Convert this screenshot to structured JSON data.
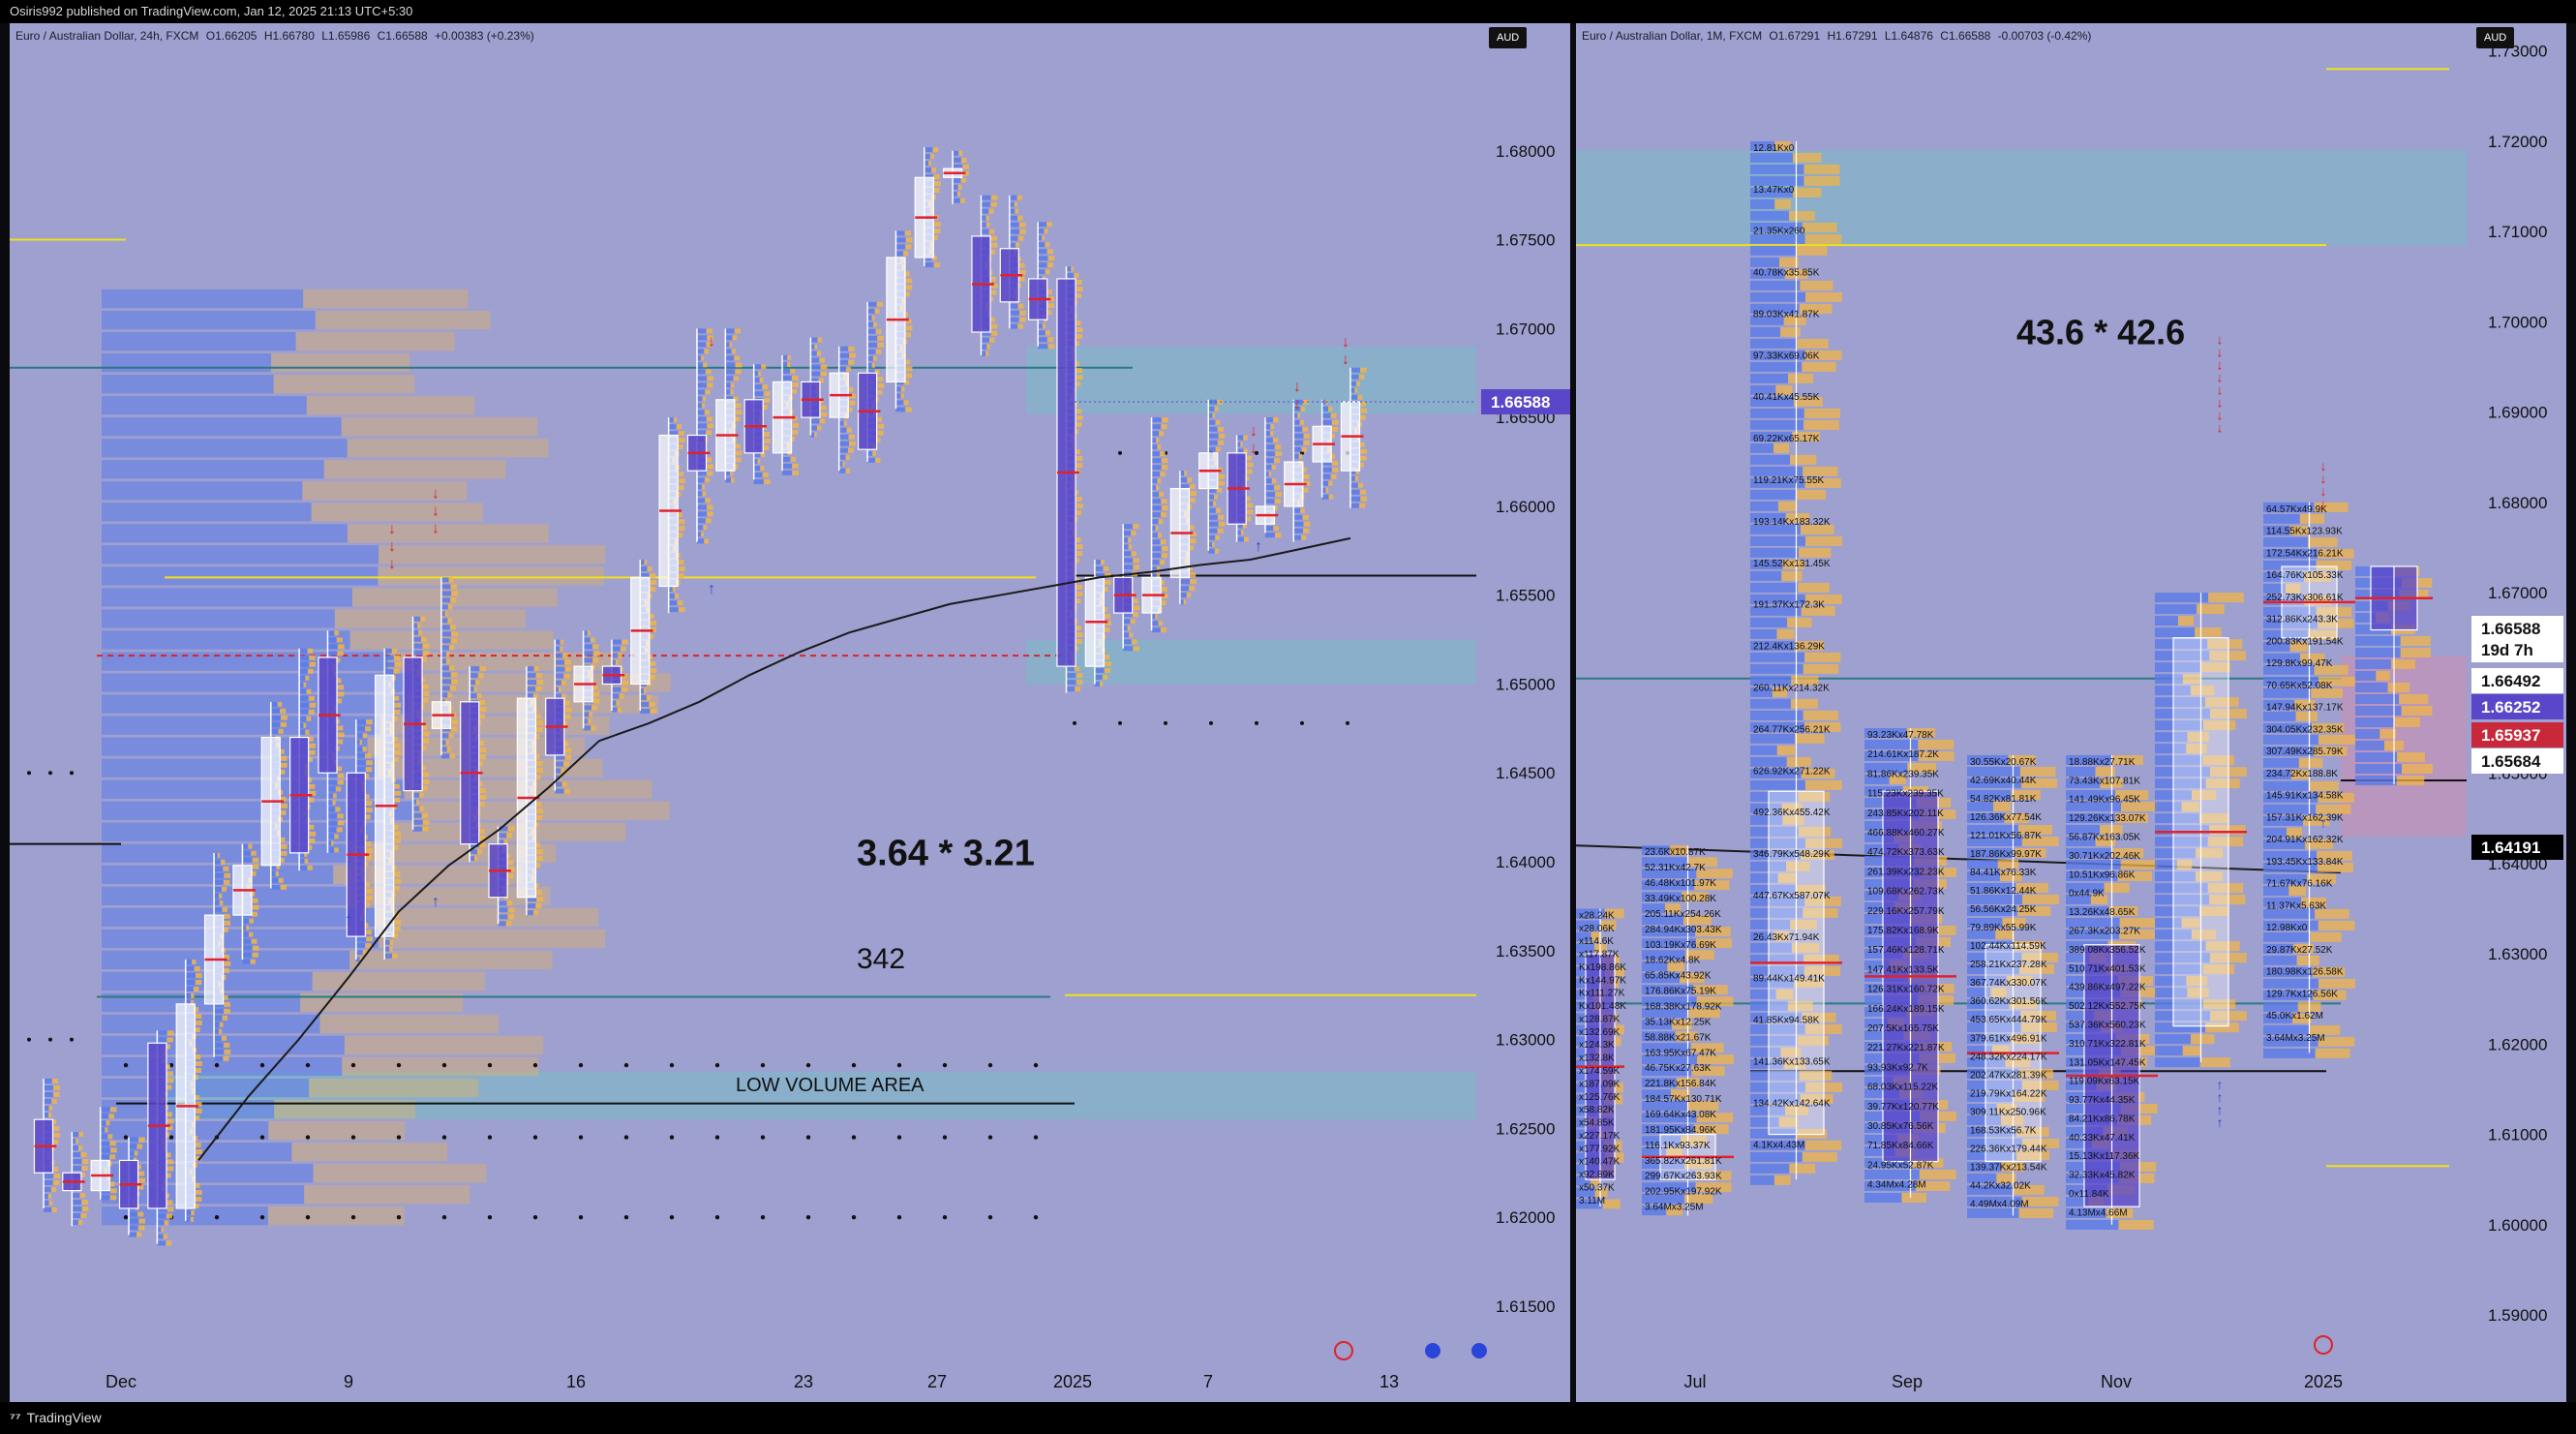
{
  "header": {
    "published_by": "Osiris992 published on TradingView.com, Jan 12, 2025 21:13 UTC+5:30"
  },
  "footer": {
    "brand": "TradingView"
  },
  "colors": {
    "panel_bg": "#9ea0cf",
    "up_candle": "#ffffff",
    "down_candle": "#6a5acd",
    "profile_blue": "#5a7ae8",
    "profile_orange": "#f0b44a",
    "poc_red": "#e0222a",
    "zone_teal": "#6fc2c6",
    "ma_line": "#1a1a1a",
    "yellow_level": "#f2e01a"
  },
  "left": {
    "title": {
      "symbol": "Euro / Australian Dollar, 24h, FXCM",
      "o": "O1.66205",
      "h": "H1.66780",
      "l": "L1.65986",
      "c": "C1.66588",
      "chg": "+0.00383 (+0.23%)"
    },
    "currency": "AUD",
    "price_label": "1.66588",
    "annotations": {
      "ratio": "3.64 * 3.21",
      "count": "342",
      "low_volume": "LOW VOLUME AREA"
    }
  },
  "right": {
    "title": {
      "symbol": "Euro / Australian Dollar, 1M, FXCM",
      "o": "O1.67291",
      "h": "H1.67291",
      "l": "L1.64876",
      "c": "C1.66588",
      "chg": "-0.00703 (-0.42%)"
    },
    "currency": "AUD",
    "annotation": "43.6 * 42.6",
    "price_labels": [
      "1.66588",
      "19d 7h",
      "1.66492",
      "1.66252",
      "1.65937",
      "1.65684",
      "1.64191"
    ],
    "profile_labels": {
      "jul": [
        "12.81Kx0",
        "13.47Kx0",
        "21.35Kx260",
        "40.78Kx35.85K",
        "89.03Kx41.87K",
        "97.33Kx69.06K",
        "40.41Kx45.55K",
        "69.22Kx65.17K",
        "119.21Kx75.55K",
        "193.14Kx183.32K",
        "145.52Kx131.45K",
        "191.37Kx172.3K",
        "212.4Kx136.29K",
        "260.11Kx214.32K",
        "264.77Kx256.21K",
        "626.92Kx271.22K",
        "492.36Kx455.42K",
        "346.79Kx548.29K",
        "447.67Kx587.07K",
        "26.43Kx71.94K",
        "89.44Kx149.41K",
        "41.85Kx94.58K",
        "141.36Kx133.65K",
        "134.42Kx142.64K",
        "4.1Kx4.43M"
      ],
      "jun": [
        "23.6Kx10.87K",
        "52.31Kx42.7K",
        "46.48Kx101.97K",
        "33.49Kx100.28K",
        "205.11Kx254.26K",
        "284.94Kx303.43K",
        "103.19Kx76.69K",
        "18.62Kx4.8K",
        "65.85Kx43.92K",
        "176.86Kx75.19K",
        "168.38Kx178.92K",
        "35.13Kx12.25K",
        "58.88Kx21.67K",
        "163.95Kx67.47K",
        "46.75Kx27.63K",
        "221.8Kx156.84K",
        "184.57Kx130.71K",
        "169.64Kx43.08K",
        "181.95Kx84.96K",
        "116.1Kx93.37K",
        "365.82Kx261.81K",
        "299.67Kx263.93K",
        "202.95Kx197.92K",
        "3.64Mx3.25M"
      ],
      "aug": [
        "93.23Kx47.78K",
        "214.61Kx187.2K",
        "81.86Kx239.35K",
        "115.23Kx239.35K",
        "243.85Kx202.11K",
        "466.88Kx460.27K",
        "474.72Kx373.63K",
        "261.39Kx232.23K",
        "109.68Kx262.73K",
        "229.16Kx257.79K",
        "175.82Kx168.9K",
        "157.46Kx128.71K",
        "147.41Kx133.5K",
        "126.31Kx160.72K",
        "166.24Kx189.15K",
        "207.5Kx165.75K",
        "221.27Kx221.87K",
        "93.93Kx92.7K",
        "68.03Kx115.22K",
        "39.77Kx120.77K",
        "30.85Kx76.56K",
        "71.85Kx84.66K",
        "24.95Kx52.87K",
        "4.34Mx4.28M"
      ],
      "sep": [
        "30.55Kx20.67K",
        "42.69Kx40.44K",
        "54.82Kx81.81K",
        "126.36Kx77.54K",
        "121.01Kx56.87K",
        "187.86Kx99.97K",
        "84.41Kx76.33K",
        "51.86Kx12.44K",
        "56.56Kx24.25K",
        "79.89Kx55.99K",
        "102.44Kx114.59K",
        "258.21Kx237.28K",
        "367.74Kx330.07K",
        "360.62Kx301.56K",
        "453.65Kx444.79K",
        "379.61Kx496.91K",
        "248.32Kx224.17K",
        "202.47Kx281.39K",
        "219.79Kx164.22K",
        "309.11Kx250.96K",
        "168.53Kx56.7K",
        "226.36Kx179.44K",
        "139.37Kx213.54K",
        "44.2Kx32.02K",
        "4.49Mx4.09M"
      ],
      "oct": [
        "18.88Kx27.71K",
        "73.43Kx107.81K",
        "141.49Kx96.45K",
        "129.26Kx133.07K",
        "56.87Kx163.05K",
        "30.71Kx202.46K",
        "10.51Kx96.86K",
        "0x44.9K",
        "13.26Kx48.65K",
        "267.3Kx203.27K",
        "389.08Kx356.52K",
        "510.71Kx401.53K",
        "439.86Kx497.22K",
        "502.12Kx552.75K",
        "537.36Kx560.23K",
        "310.71Kx322.81K",
        "131.05Kx147.45K",
        "119.09Kx63.15K",
        "93.77Kx44.35K",
        "84.21Kx86.78K",
        "40.33Kx47.41K",
        "15.13Kx117.36K",
        "32.33Kx45.82K",
        "0x11.84K",
        "4.13Mx4.66M"
      ],
      "dec": [
        "64.57Kx49.9K",
        "114.55Kx123.93K",
        "172.54Kx216.21K",
        "164.76Kx105.33K",
        "252.73Kx306.61K",
        "312.86Kx243.3K",
        "200.83Kx191.54K",
        "129.8Kx99.47K",
        "70.65Kx52.08K",
        "147.94Kx137.17K",
        "304.05Kx232.35K",
        "307.49Kx285.79K",
        "234.72Kx188.8K",
        "145.91Kx134.58K",
        "157.31Kx162.39K",
        "204.91Kx162.32K",
        "193.45Kx133.84K",
        "71.67Kx76.16K",
        "11.37Kx5.63K",
        "12.98Kx0",
        "29.87Kx27.52K",
        "180.98Kx126.58K",
        "129.7Kx126.56K",
        "45.0Kx1.62M",
        "3.64Mx3.25M"
      ],
      "may": [
        "x28.24K",
        "x28.06K",
        "x114.6K",
        "x117.87K",
        "Kx198.86K",
        "Kx144.97K",
        "Kx111.27K",
        "Kx101.48K",
        "x128.87K",
        "x132.69K",
        "x124.3K",
        "x132.8K",
        "x174.59K",
        "x187.09K",
        "x125.76K",
        "x58.82K",
        "x54.85K",
        "x227.17K",
        "x177.92K",
        "x140.47K",
        "x92.89K",
        "x50.37K",
        "3.11M"
      ]
    }
  },
  "chart_data": [
    {
      "type": "candlestick",
      "symbol": "Euro / Australian Dollar, 24h, FXCM",
      "x_tick_labels": [
        "Dec",
        "9",
        "16",
        "23",
        "27",
        "2025",
        "7",
        "13"
      ],
      "y_tick_labels": [
        "1.68000",
        "1.67500",
        "1.67000",
        "1.66500",
        "1.66000",
        "1.65500",
        "1.65000",
        "1.64500",
        "1.64000",
        "1.63500",
        "1.63000",
        "1.62500",
        "1.62000",
        "1.61500"
      ],
      "ylim": [
        1.612,
        1.685
      ],
      "last_price": 1.66588,
      "candles": [
        {
          "o": 1.6255,
          "h": 1.6278,
          "l": 1.6205,
          "c": 1.6225
        },
        {
          "o": 1.6225,
          "h": 1.6248,
          "l": 1.6195,
          "c": 1.6215
        },
        {
          "o": 1.6215,
          "h": 1.6262,
          "l": 1.621,
          "c": 1.6232
        },
        {
          "o": 1.6232,
          "h": 1.6245,
          "l": 1.619,
          "c": 1.6205
        },
        {
          "o": 1.6298,
          "h": 1.6305,
          "l": 1.6185,
          "c": 1.6205
        },
        {
          "o": 1.6205,
          "h": 1.6345,
          "l": 1.6198,
          "c": 1.632
        },
        {
          "o": 1.632,
          "h": 1.6405,
          "l": 1.629,
          "c": 1.637
        },
        {
          "o": 1.637,
          "h": 1.641,
          "l": 1.6345,
          "c": 1.6398
        },
        {
          "o": 1.6398,
          "h": 1.649,
          "l": 1.6385,
          "c": 1.647
        },
        {
          "o": 1.647,
          "h": 1.652,
          "l": 1.6395,
          "c": 1.6405
        },
        {
          "o": 1.6515,
          "h": 1.653,
          "l": 1.6405,
          "c": 1.645
        },
        {
          "o": 1.645,
          "h": 1.648,
          "l": 1.6345,
          "c": 1.6358
        },
        {
          "o": 1.6358,
          "h": 1.652,
          "l": 1.6345,
          "c": 1.6505
        },
        {
          "o": 1.6515,
          "h": 1.6538,
          "l": 1.6418,
          "c": 1.644
        },
        {
          "o": 1.6475,
          "h": 1.656,
          "l": 1.646,
          "c": 1.649
        },
        {
          "o": 1.649,
          "h": 1.651,
          "l": 1.64,
          "c": 1.641
        },
        {
          "o": 1.641,
          "h": 1.642,
          "l": 1.6365,
          "c": 1.638
        },
        {
          "o": 1.638,
          "h": 1.651,
          "l": 1.637,
          "c": 1.6492
        },
        {
          "o": 1.6492,
          "h": 1.6525,
          "l": 1.644,
          "c": 1.646
        },
        {
          "o": 1.649,
          "h": 1.653,
          "l": 1.6475,
          "c": 1.651
        },
        {
          "o": 1.651,
          "h": 1.6525,
          "l": 1.6485,
          "c": 1.65
        },
        {
          "o": 1.65,
          "h": 1.657,
          "l": 1.6485,
          "c": 1.656
        },
        {
          "o": 1.6555,
          "h": 1.665,
          "l": 1.654,
          "c": 1.664
        },
        {
          "o": 1.664,
          "h": 1.67,
          "l": 1.658,
          "c": 1.662
        },
        {
          "o": 1.662,
          "h": 1.67,
          "l": 1.6615,
          "c": 1.666
        },
        {
          "o": 1.666,
          "h": 1.668,
          "l": 1.6615,
          "c": 1.663
        },
        {
          "o": 1.663,
          "h": 1.6685,
          "l": 1.662,
          "c": 1.667
        },
        {
          "o": 1.667,
          "h": 1.6695,
          "l": 1.664,
          "c": 1.665
        },
        {
          "o": 1.665,
          "h": 1.669,
          "l": 1.662,
          "c": 1.6675
        },
        {
          "o": 1.6675,
          "h": 1.6715,
          "l": 1.6625,
          "c": 1.6632
        },
        {
          "o": 1.667,
          "h": 1.6755,
          "l": 1.6655,
          "c": 1.674
        },
        {
          "o": 1.674,
          "h": 1.6802,
          "l": 1.6735,
          "c": 1.6785
        },
        {
          "o": 1.6785,
          "h": 1.68,
          "l": 1.677,
          "c": 1.679
        },
        {
          "o": 1.6752,
          "h": 1.6775,
          "l": 1.6685,
          "c": 1.6698
        },
        {
          "o": 1.6745,
          "h": 1.6775,
          "l": 1.67,
          "c": 1.6715
        },
        {
          "o": 1.6728,
          "h": 1.676,
          "l": 1.669,
          "c": 1.6705
        },
        {
          "o": 1.6728,
          "h": 1.6735,
          "l": 1.6495,
          "c": 1.651
        },
        {
          "o": 1.651,
          "h": 1.657,
          "l": 1.65,
          "c": 1.656
        },
        {
          "o": 1.656,
          "h": 1.659,
          "l": 1.652,
          "c": 1.654
        },
        {
          "o": 1.654,
          "h": 1.665,
          "l": 1.653,
          "c": 1.656
        },
        {
          "o": 1.656,
          "h": 1.662,
          "l": 1.6545,
          "c": 1.661
        },
        {
          "o": 1.661,
          "h": 1.666,
          "l": 1.6575,
          "c": 1.663
        },
        {
          "o": 1.663,
          "h": 1.664,
          "l": 1.658,
          "c": 1.659
        },
        {
          "o": 1.659,
          "h": 1.665,
          "l": 1.6585,
          "c": 1.66
        },
        {
          "o": 1.66,
          "h": 1.666,
          "l": 1.658,
          "c": 1.6625
        },
        {
          "o": 1.6625,
          "h": 1.666,
          "l": 1.6605,
          "c": 1.6645
        },
        {
          "o": 1.662,
          "h": 1.6678,
          "l": 1.6599,
          "c": 1.66588
        }
      ],
      "moving_average": [
        1.6232,
        1.6268,
        1.63,
        1.6335,
        1.6372,
        1.6398,
        1.6418,
        1.6442,
        1.6468,
        1.6478,
        1.649,
        1.6505,
        1.6518,
        1.6529,
        1.6537,
        1.6545,
        1.655,
        1.6555,
        1.656,
        1.6563,
        1.6567,
        1.657,
        1.6576,
        1.6582
      ],
      "zones": [
        {
          "from": 1.6652,
          "to": 1.669
        },
        {
          "from": 1.65,
          "to": 1.6525
        },
        {
          "from": 1.6255,
          "to": 1.6282
        }
      ],
      "levels": {
        "yellow": [
          1.675,
          1.656,
          1.6325
        ],
        "black": [
          1.6561,
          1.6264,
          1.641
        ],
        "teal": [
          1.6678,
          1.6324
        ],
        "red_dashed": 1.6516
      }
    },
    {
      "type": "candlestick",
      "symbol": "Euro / Australian Dollar, 1M, FXCM",
      "x_tick_labels": [
        "Jul",
        "Sep",
        "Nov",
        "2025"
      ],
      "y_tick_labels": [
        "1.73000",
        "1.72000",
        "1.71000",
        "1.70000",
        "1.69000",
        "1.68000",
        "1.67000",
        "1.66000",
        "1.65000",
        "1.64000",
        "1.63000",
        "1.62000",
        "1.61000",
        "1.60000",
        "1.59000"
      ],
      "ylim": [
        1.584,
        1.732
      ],
      "last_price": 1.66588,
      "candles": [
        {
          "month": "May",
          "o": 1.63,
          "h": 1.635,
          "l": 1.602,
          "c": 1.605
        },
        {
          "month": "Jun",
          "o": 1.605,
          "h": 1.642,
          "l": 1.601,
          "c": 1.61
        },
        {
          "month": "Jul",
          "o": 1.61,
          "h": 1.72,
          "l": 1.605,
          "c": 1.648
        },
        {
          "month": "Aug",
          "o": 1.648,
          "h": 1.655,
          "l": 1.603,
          "c": 1.607
        },
        {
          "month": "Sep",
          "o": 1.607,
          "h": 1.652,
          "l": 1.601,
          "c": 1.631
        },
        {
          "month": "Oct",
          "o": 1.631,
          "h": 1.652,
          "l": 1.6,
          "c": 1.602
        },
        {
          "month": "Nov",
          "o": 1.622,
          "h": 1.67,
          "l": 1.618,
          "c": 1.665
        },
        {
          "month": "Dec",
          "o": 1.665,
          "h": 1.68,
          "l": 1.619,
          "c": 1.6729
        },
        {
          "month": "Jan",
          "o": 1.67291,
          "h": 1.67291,
          "l": 1.64876,
          "c": 1.66588
        }
      ],
      "zones": [
        {
          "from": 1.7085,
          "to": 1.719
        },
        {
          "from": 1.643,
          "to": 1.663
        }
      ],
      "levels": {
        "yellow": [
          1.728,
          1.7085,
          1.6065
        ],
        "black": [
          1.6492,
          1.617
        ],
        "teal": [
          1.6605,
          1.6245
        ]
      }
    }
  ]
}
